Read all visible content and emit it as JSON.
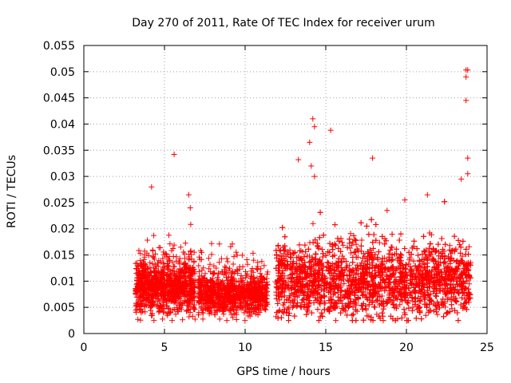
{
  "chart_data": {
    "type": "scatter",
    "title": "Day 270 of 2011, Rate Of TEC Index for receiver urum",
    "xlabel": "GPS time / hours",
    "ylabel": "ROTI / TECUs",
    "xlim": [
      0,
      25
    ],
    "ylim": [
      0,
      0.055
    ],
    "xticks": [
      0,
      5,
      10,
      15,
      20,
      25
    ],
    "xtick_labels": [
      "0",
      "5",
      "10",
      "15",
      "20",
      "25"
    ],
    "yticks": [
      0,
      0.005,
      0.01,
      0.015,
      0.02,
      0.025,
      0.03,
      0.035,
      0.04,
      0.045,
      0.05,
      0.055
    ],
    "ytick_labels": [
      "0",
      "0.005",
      "0.01",
      "0.015",
      "0.02",
      "0.025",
      "0.03",
      "0.035",
      "0.04",
      "0.045",
      "0.05",
      "0.055"
    ],
    "grid": true,
    "marker": "+",
    "color": "#ff0000",
    "clusters": [
      {
        "x_start": 3.2,
        "x_end": 6.9,
        "y_low": 0.0045,
        "y_high": 0.0135,
        "density": 1000
      },
      {
        "x_start": 7.1,
        "x_end": 11.4,
        "y_low": 0.004,
        "y_high": 0.011,
        "density": 950
      },
      {
        "x_start": 11.9,
        "x_end": 24.0,
        "y_low": 0.004,
        "y_high": 0.016,
        "density": 3200
      }
    ],
    "series": [
      {
        "name": "ROTI",
        "notable_points": [
          {
            "x": 4.2,
            "y": 0.028
          },
          {
            "x": 5.6,
            "y": 0.0342
          },
          {
            "x": 6.5,
            "y": 0.0265
          },
          {
            "x": 6.6,
            "y": 0.024
          },
          {
            "x": 13.3,
            "y": 0.0332
          },
          {
            "x": 14.0,
            "y": 0.0365
          },
          {
            "x": 14.2,
            "y": 0.041
          },
          {
            "x": 14.3,
            "y": 0.0395
          },
          {
            "x": 14.1,
            "y": 0.032
          },
          {
            "x": 14.3,
            "y": 0.03
          },
          {
            "x": 15.3,
            "y": 0.0388
          },
          {
            "x": 17.9,
            "y": 0.0335
          },
          {
            "x": 23.7,
            "y": 0.0503
          },
          {
            "x": 23.8,
            "y": 0.0503
          },
          {
            "x": 23.7,
            "y": 0.049
          },
          {
            "x": 23.7,
            "y": 0.0445
          },
          {
            "x": 23.8,
            "y": 0.0335
          },
          {
            "x": 23.8,
            "y": 0.0305
          },
          {
            "x": 23.4,
            "y": 0.0295
          },
          {
            "x": 21.3,
            "y": 0.0265
          },
          {
            "x": 19.9,
            "y": 0.0255
          },
          {
            "x": 18.8,
            "y": 0.0235
          }
        ]
      }
    ]
  }
}
